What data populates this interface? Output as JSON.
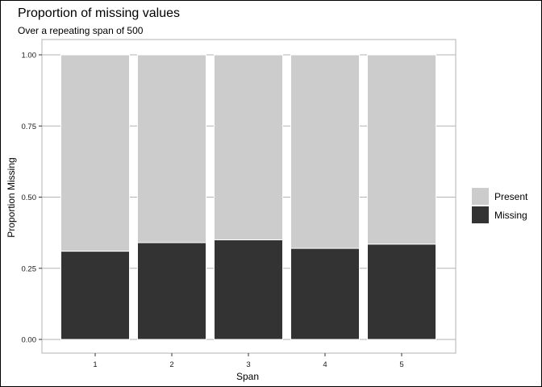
{
  "chart_data": {
    "type": "bar",
    "stacked": true,
    "title": "Proportion of missing values",
    "subtitle": "Over a repeating span of 500",
    "xlabel": "Span",
    "ylabel": "Proportion Missing",
    "categories": [
      "1",
      "2",
      "3",
      "4",
      "5"
    ],
    "ylim": [
      0,
      1
    ],
    "yticks": [
      "0.00",
      "0.25",
      "0.50",
      "0.75",
      "1.00"
    ],
    "ytick_values": [
      0,
      0.25,
      0.5,
      0.75,
      1.0
    ],
    "grid": true,
    "legend_position": "right",
    "series": [
      {
        "name": "Missing",
        "values": [
          0.31,
          0.34,
          0.35,
          0.32,
          0.335
        ],
        "color": "#333333"
      },
      {
        "name": "Present",
        "values": [
          0.69,
          0.66,
          0.65,
          0.68,
          0.665
        ],
        "color": "#cccccc"
      }
    ],
    "legend": [
      {
        "name": "Present",
        "color": "#cccccc"
      },
      {
        "name": "Missing",
        "color": "#333333"
      }
    ]
  }
}
